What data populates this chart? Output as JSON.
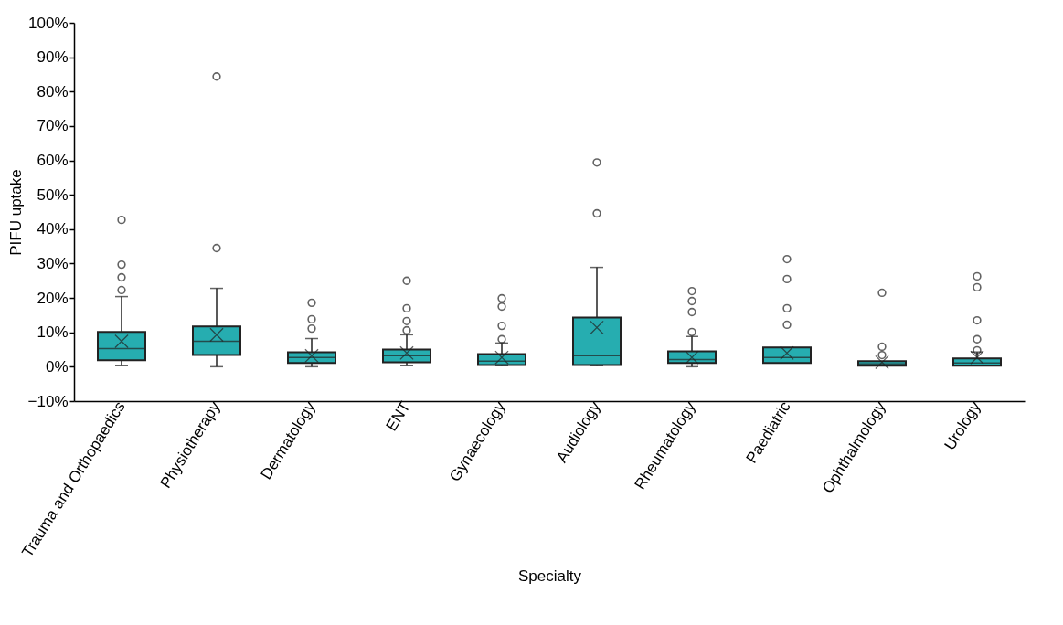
{
  "chart_data": {
    "type": "box",
    "xlabel": "Specialty",
    "ylabel": "PIFU uptake",
    "categories": [
      "Trauma and Orthopaedics",
      "Physiotherapy",
      "Dermatology",
      "ENT",
      "Gynaecology",
      "Audiology",
      "Rheumatology",
      "Paediatric",
      "Ophthalmology",
      "Urology"
    ],
    "series": [
      {
        "color": "#26adb0",
        "boxes": [
          {
            "low": 0.3,
            "q1": 1.9,
            "median": 5.3,
            "q3": 10.1,
            "high": 20.4,
            "mean": 7.4,
            "outliers": [
              22.3,
              26,
              29.7,
              42.7
            ]
          },
          {
            "low": 0,
            "q1": 3.4,
            "median": 7.4,
            "q3": 11.7,
            "high": 22.8,
            "mean": 9.3,
            "outliers": [
              34.5,
              84.4
            ]
          },
          {
            "low": 0,
            "q1": 1.1,
            "median": 2.7,
            "q3": 4.2,
            "high": 8.2,
            "mean": 3.2,
            "outliers": [
              11.1,
              13.8,
              18.6
            ]
          },
          {
            "low": 0.3,
            "q1": 1.3,
            "median": 3.2,
            "q3": 5,
            "high": 9.3,
            "mean": 4,
            "outliers": [
              10.6,
              13.3,
              17,
              25
            ]
          },
          {
            "low": 0.3,
            "q1": 0.5,
            "median": 1.6,
            "q3": 3.7,
            "high": 6.9,
            "mean": 2.7,
            "outliers": [
              8,
              11.9,
              17.5,
              19.9
            ]
          },
          {
            "low": 0.3,
            "q1": 0.5,
            "median": 3.2,
            "q3": 14.3,
            "high": 28.9,
            "mean": 11.4,
            "outliers": [
              44.6,
              59.4
            ]
          },
          {
            "low": 0,
            "q1": 1.1,
            "median": 2.1,
            "q3": 4.5,
            "high": 8.8,
            "mean": 2.7,
            "outliers": [
              10.1,
              15.9,
              19.1,
              22
            ]
          },
          {
            "low": 1.1,
            "q1": 1.1,
            "median": 2.7,
            "q3": 5.6,
            "high": 5.6,
            "mean": 4,
            "outliers": [
              12.2,
              17,
              25.5,
              31.3
            ]
          },
          {
            "low": 0.3,
            "q1": 0.3,
            "median": 0.8,
            "q3": 1.6,
            "high": 1.6,
            "mean": 1.3,
            "outliers": [
              3.4,
              5.8,
              21.5
            ]
          },
          {
            "low": 0.3,
            "q1": 0.3,
            "median": 1.1,
            "q3": 2.4,
            "high": 4.3,
            "mean": 2.7,
            "outliers": [
              4.8,
              8,
              13.5,
              23.1,
              26.3
            ]
          }
        ]
      }
    ],
    "ylim": [
      -10,
      100
    ],
    "yticks": [
      {
        "value": -10,
        "label": "−10%"
      },
      {
        "value": 0,
        "label": "0%"
      },
      {
        "value": 10,
        "label": "10%"
      },
      {
        "value": 20,
        "label": "20%"
      },
      {
        "value": 30,
        "label": "30%"
      },
      {
        "value": 40,
        "label": "40%"
      },
      {
        "value": 50,
        "label": "50%"
      },
      {
        "value": 60,
        "label": "60%"
      },
      {
        "value": 70,
        "label": "70%"
      },
      {
        "value": 80,
        "label": "80%"
      },
      {
        "value": 90,
        "label": "90%"
      },
      {
        "value": 100,
        "label": "100%"
      }
    ]
  }
}
